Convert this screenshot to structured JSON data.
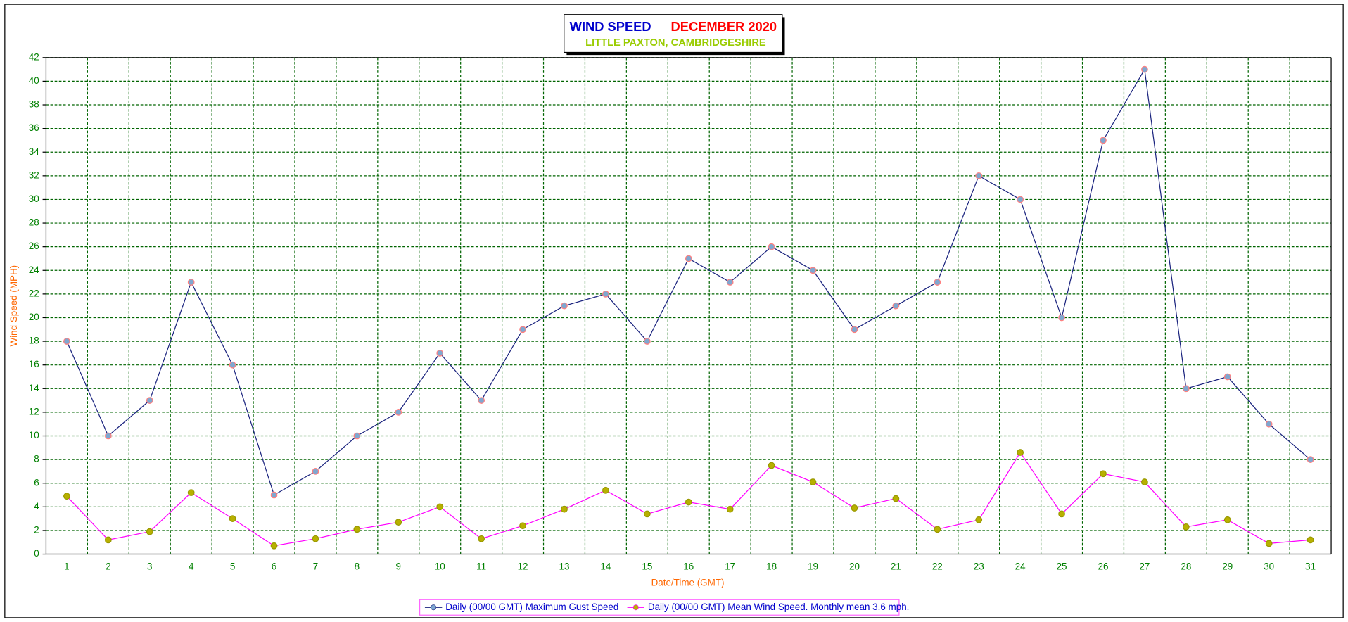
{
  "chart_data": {
    "type": "line",
    "title": [
      "WIND SPEED",
      "DECEMBER 2020"
    ],
    "title_colors": [
      "#0000cc",
      "#ff0000"
    ],
    "subtitle": "LITTLE PAXTON, CAMBRIDGESHIRE",
    "subtitle_color": "#99cc00",
    "x_label": "Date/Time (GMT)",
    "y_label": "Wind Speed (MPH)",
    "categories": [
      "1",
      "2",
      "3",
      "4",
      "5",
      "6",
      "7",
      "8",
      "9",
      "10",
      "11",
      "12",
      "13",
      "14",
      "15",
      "16",
      "17",
      "18",
      "19",
      "20",
      "21",
      "22",
      "23",
      "24",
      "25",
      "26",
      "27",
      "28",
      "29",
      "30",
      "31"
    ],
    "series": [
      {
        "name": "Daily (00/00 GMT) Maximum Gust Speed",
        "color": "#1a237e",
        "marker_color": "#7fa7d0",
        "values": [
          18,
          10,
          13,
          23,
          16,
          5,
          7,
          10,
          12,
          17,
          13,
          19,
          21,
          22,
          18,
          25,
          23,
          26,
          24,
          19,
          21,
          23,
          32,
          30,
          20,
          35,
          41,
          14,
          15,
          11,
          8
        ]
      },
      {
        "name": "Daily (00/00 GMT) Mean Wind Speed. Monthly mean 3.6 mph.",
        "color": "#ff00ff",
        "marker_color": "#b8b000",
        "values": [
          4.9,
          1.2,
          1.9,
          5.2,
          3.0,
          0.7,
          1.3,
          2.1,
          2.7,
          4.0,
          1.3,
          2.4,
          3.8,
          5.4,
          3.4,
          4.4,
          3.8,
          7.5,
          6.1,
          3.9,
          4.7,
          2.1,
          2.9,
          8.6,
          3.4,
          6.8,
          6.1,
          2.3,
          2.9,
          0.9,
          1.2
        ]
      }
    ],
    "ylim": [
      0,
      42
    ],
    "yticks": [
      0,
      2,
      4,
      6,
      8,
      10,
      12,
      14,
      16,
      18,
      20,
      22,
      24,
      26,
      28,
      30,
      32,
      34,
      36,
      38,
      40,
      42
    ],
    "grid": true
  }
}
